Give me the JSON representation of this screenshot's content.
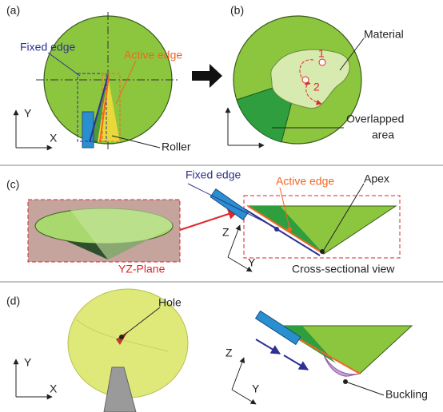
{
  "panels": {
    "a": {
      "label": "(a)",
      "fixed_edge": "Fixed edge",
      "active_edge": "Active edge",
      "axis_y": "Y",
      "axis_x": "X",
      "roller": "Roller"
    },
    "b": {
      "label": "(b)",
      "material": "Material",
      "step1": "1",
      "step2": "2",
      "overlapped_area": [
        "Overlapped",
        "area"
      ]
    },
    "c": {
      "label": "(c)",
      "fixed_edge": "Fixed edge",
      "active_edge": "Active edge",
      "apex": "Apex",
      "axis_z": "Z",
      "axis_y": "Y",
      "plane": "YZ-Plane",
      "view": "Cross-sectional view"
    },
    "d": {
      "label": "(d)",
      "hole": "Hole",
      "axis_y": "Y",
      "axis_x": "X",
      "axis_z": "Z",
      "axis_y2": "Y",
      "buckling": "Buckling"
    }
  }
}
